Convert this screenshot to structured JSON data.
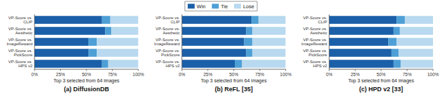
{
  "chart_data": [
    {
      "type": "bar",
      "orientation": "horizontal",
      "stacked": true,
      "legend": "top",
      "title": "(a) DiffusionDB",
      "categories": [
        "VP-Score vs.\nCLIP",
        "VP-Score vs.\nAesthetic",
        "VP-Score vs.\nImageReward",
        "VP-Score vs.\nPickScore",
        "VP-Score vs.\nHPS v2"
      ],
      "series": [
        {
          "name": "Win",
          "color": "#1a5fa8",
          "values": [
            0.65,
            0.68,
            0.52,
            0.52,
            0.65
          ]
        },
        {
          "name": "Tie",
          "color": "#4d9fd6",
          "values": [
            0.08,
            0.06,
            0.08,
            0.08,
            0.06
          ]
        },
        {
          "name": "Lose",
          "color": "#b8d9ef",
          "values": [
            0.27,
            0.26,
            0.4,
            0.4,
            0.29
          ]
        }
      ],
      "xlabel": "Top 3 selected from 64 images",
      "xlim": [
        0,
        1
      ],
      "xticks": [
        {
          "value": 0,
          "label": "0%"
        },
        {
          "value": 0.25,
          "label": "25%"
        },
        {
          "value": 0.5,
          "label": "50%"
        },
        {
          "value": 0.75,
          "label": "75%"
        },
        {
          "value": 1.0,
          "label": "100%"
        }
      ]
    },
    {
      "type": "bar",
      "orientation": "horizontal",
      "stacked": true,
      "title": "(b) ReFL [35]",
      "categories": [
        "VP-Score vs.\nCLIP",
        "VP-Score vs.\nAesthetic",
        "VP-Score vs.\nImageReward",
        "VP-Score vs.\nPickScore",
        "VP-Score vs.\nHPS v2"
      ],
      "series": [
        {
          "name": "Win",
          "color": "#1a5fa8",
          "values": [
            0.67,
            0.62,
            0.6,
            0.62,
            0.51
          ]
        },
        {
          "name": "Tie",
          "color": "#4d9fd6",
          "values": [
            0.07,
            0.06,
            0.08,
            0.06,
            0.07
          ]
        },
        {
          "name": "Lose",
          "color": "#b8d9ef",
          "values": [
            0.26,
            0.32,
            0.32,
            0.32,
            0.42
          ]
        }
      ],
      "xlabel": "Top 3 selected from 64 images",
      "xlim": [
        0,
        1
      ],
      "xticks": [
        {
          "value": 0,
          "label": "0%"
        },
        {
          "value": 0.25,
          "label": "25%"
        },
        {
          "value": 0.5,
          "label": "50%"
        },
        {
          "value": 0.75,
          "label": "75%"
        },
        {
          "value": 1.0,
          "label": "100%"
        }
      ]
    },
    {
      "type": "bar",
      "orientation": "horizontal",
      "stacked": true,
      "title": "(c) HPD v2 [33]",
      "categories": [
        "VP-Score vs.\nCLIP",
        "VP-Score vs.\nAesthetic",
        "VP-Score vs.\nImageReward",
        "VP-Score vs.\nPickScore",
        "VP-Score vs.\nHPS v2"
      ],
      "series": [
        {
          "name": "Win",
          "color": "#1a5fa8",
          "values": [
            0.65,
            0.62,
            0.57,
            0.6,
            0.62
          ]
        },
        {
          "name": "Tie",
          "color": "#4d9fd6",
          "values": [
            0.08,
            0.06,
            0.08,
            0.07,
            0.07
          ]
        },
        {
          "name": "Lose",
          "color": "#b8d9ef",
          "values": [
            0.27,
            0.32,
            0.35,
            0.33,
            0.31
          ]
        }
      ],
      "xlabel": "Top 3 selected from 64 images",
      "xlim": [
        0,
        1
      ],
      "xticks": [
        {
          "value": 0,
          "label": "0%"
        },
        {
          "value": 0.25,
          "label": "25%"
        },
        {
          "value": 0.5,
          "label": "50%"
        },
        {
          "value": 0.75,
          "label": "75%"
        },
        {
          "value": 1.0,
          "label": "100%"
        }
      ]
    }
  ]
}
